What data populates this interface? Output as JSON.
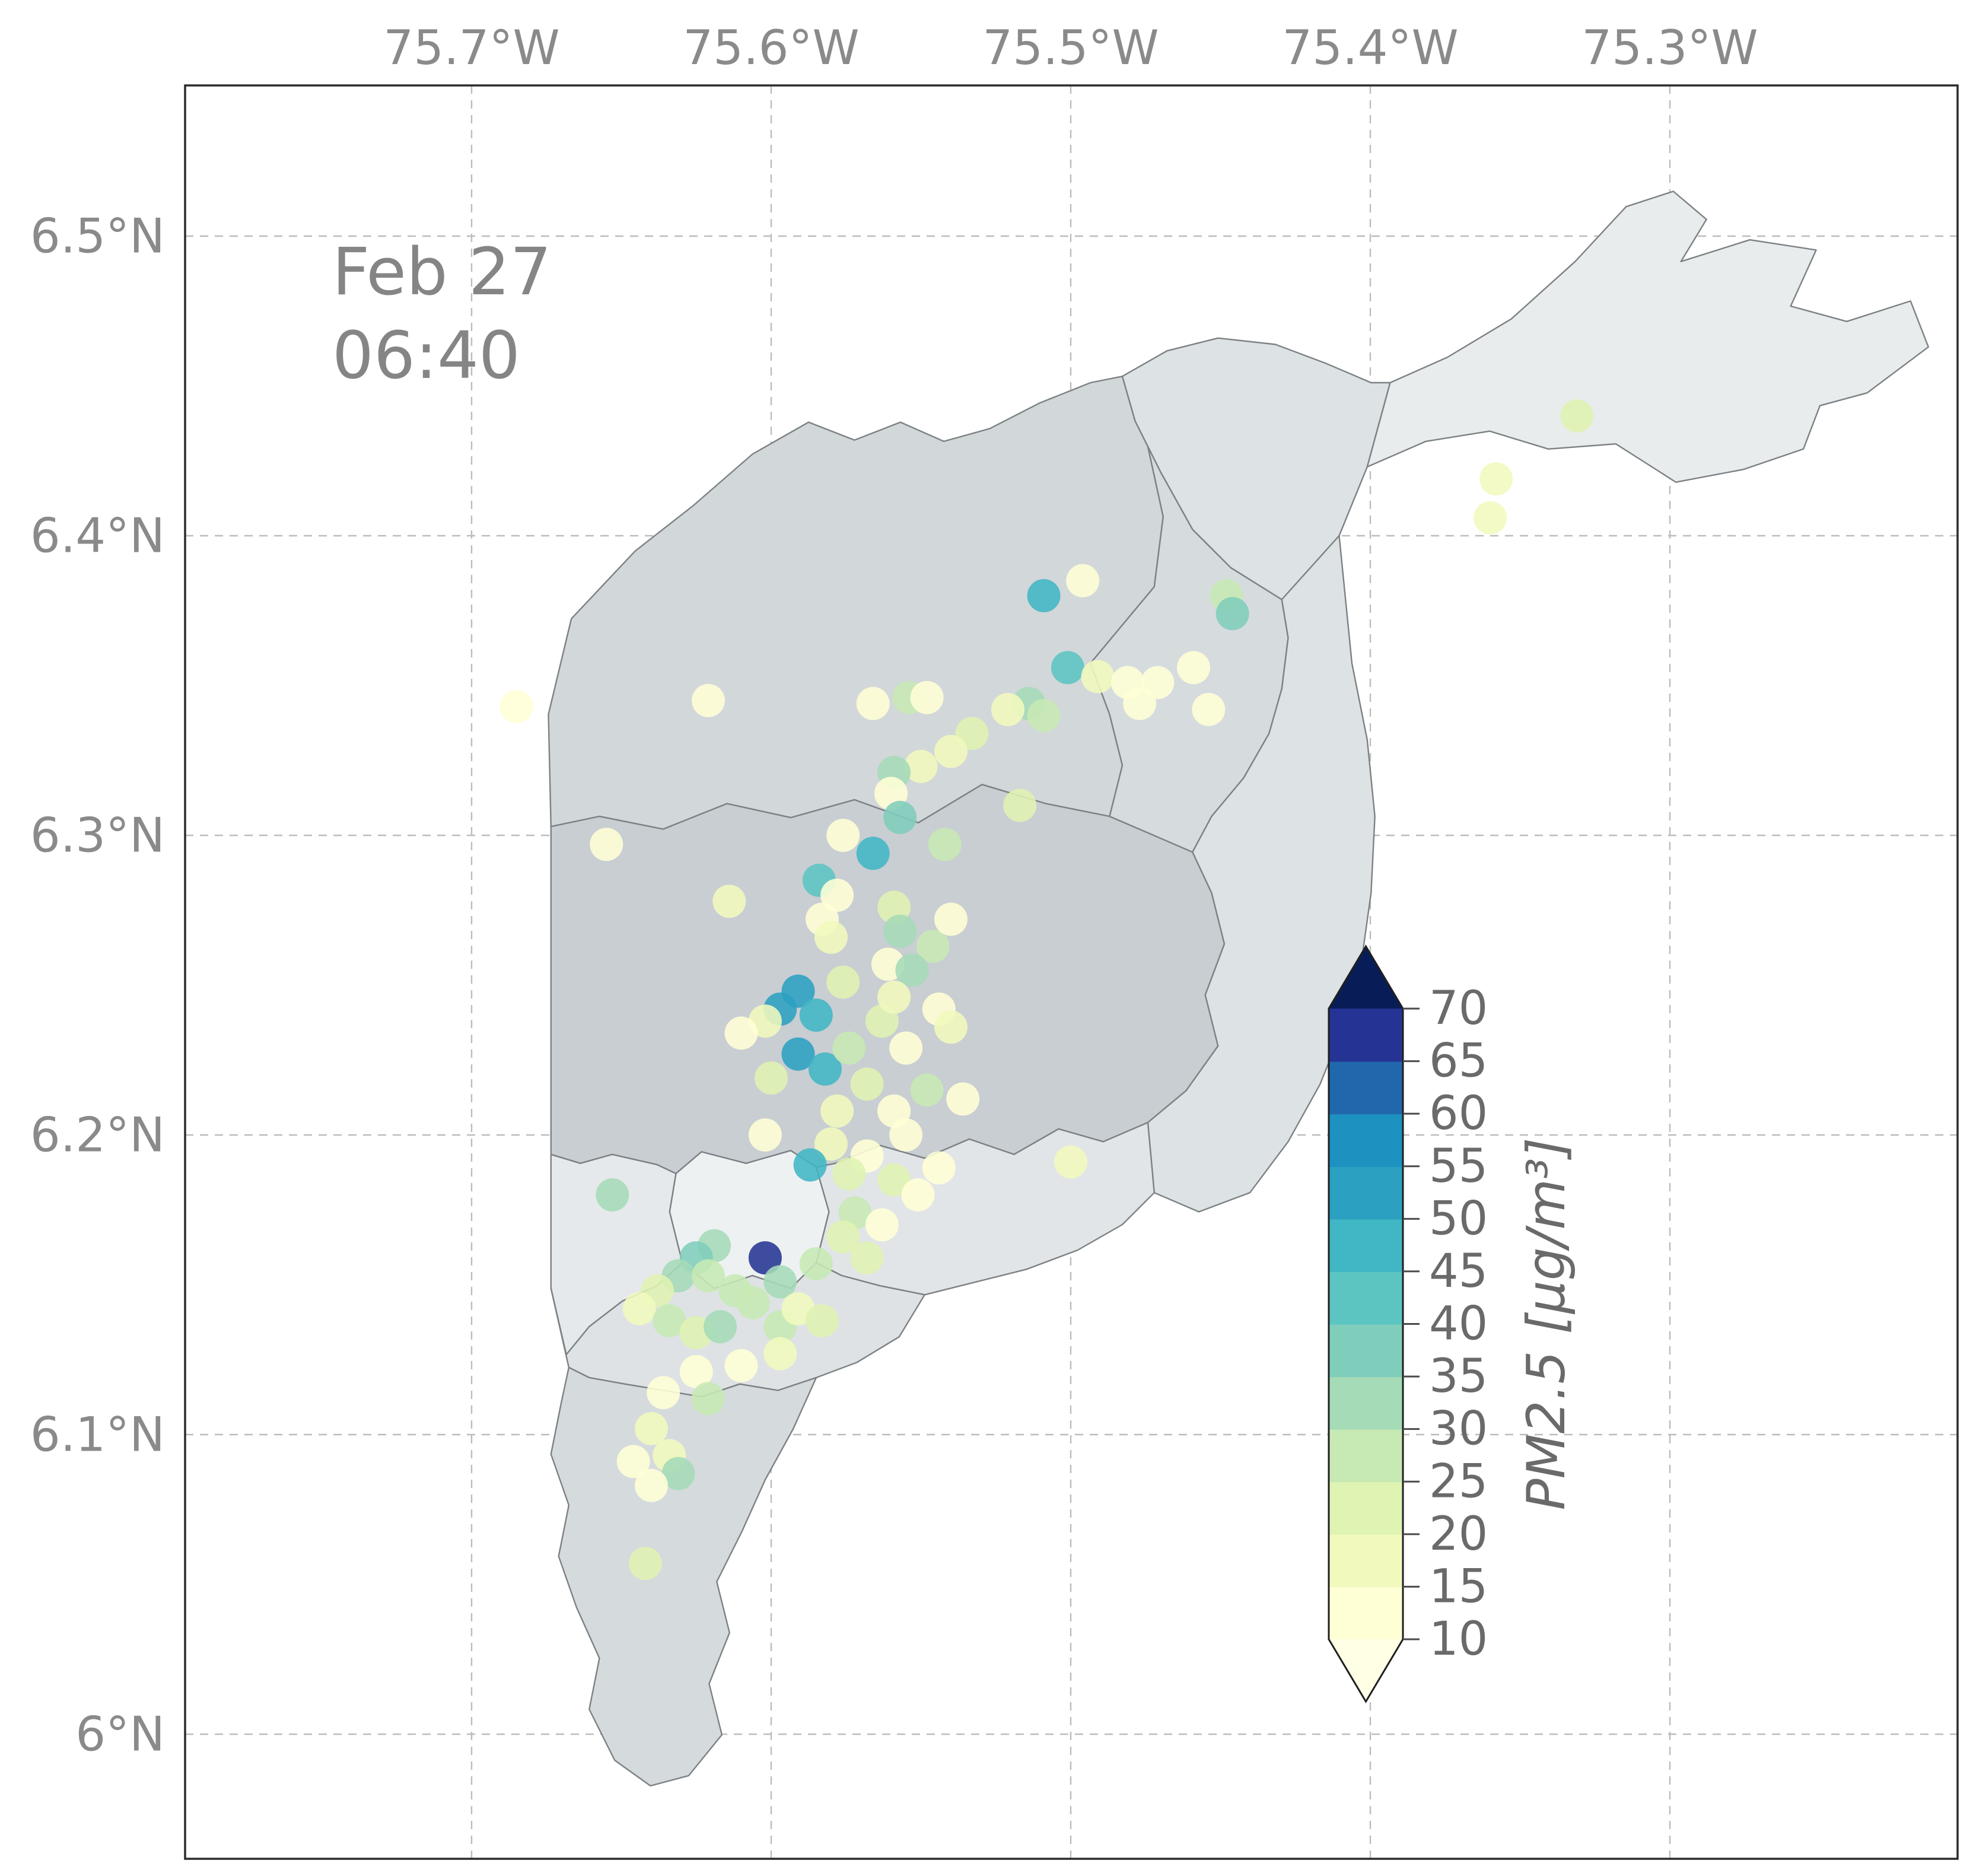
{
  "figure": {
    "annotation": {
      "date": "Feb 27",
      "time": "06:40"
    }
  },
  "axes": {
    "top_tick_labels": [
      "75.7°W",
      "75.6°W",
      "75.5°W",
      "75.4°W",
      "75.3°W"
    ],
    "top_tick_lons": [
      -75.7,
      -75.6,
      -75.5,
      -75.4,
      -75.3
    ],
    "left_tick_labels": [
      "6.5°N",
      "6.4°N",
      "6.3°N",
      "6.2°N",
      "6.1°N",
      "6°N"
    ],
    "left_tick_lats": [
      6.5,
      6.4,
      6.3,
      6.2,
      6.1,
      6.0
    ]
  },
  "colorbar": {
    "label": "PM2.5 [µg/m³]",
    "ticks": [
      70,
      65,
      60,
      55,
      50,
      45,
      40,
      35,
      30,
      25,
      20,
      15,
      10
    ],
    "vmin": 10,
    "vmax": 70,
    "band_step": 5,
    "band_colors": [
      "#ffffd6",
      "#f1f9bd",
      "#dff3b2",
      "#c7e9b4",
      "#a5dbb7",
      "#7fcdbb",
      "#5cc5c1",
      "#41b6c4",
      "#2ba0c1",
      "#1d91c0",
      "#2167ac",
      "#253494"
    ],
    "over_color": "#081d58",
    "under_color": "#ffffe5"
  },
  "chart_data": {
    "type": "scatter",
    "annotation": "Feb 27 06:40",
    "value_label": "PM2.5 [µg/m³]",
    "colormap": "YlGnBu",
    "value_range": [
      10,
      70
    ],
    "lon_ticks": [
      -75.7,
      -75.6,
      -75.5,
      -75.4,
      -75.3
    ],
    "lat_ticks": [
      6.5,
      6.4,
      6.3,
      6.2,
      6.1,
      6.0
    ],
    "grid": true,
    "fields": [
      "lon",
      "lat",
      "pm25"
    ],
    "points": [
      [
        -75.331,
        6.44,
        22
      ],
      [
        -75.358,
        6.419,
        18
      ],
      [
        -75.36,
        6.406,
        15
      ],
      [
        -75.448,
        6.38,
        25
      ],
      [
        -75.446,
        6.374,
        35
      ],
      [
        -75.509,
        6.38,
        45
      ],
      [
        -75.496,
        6.385,
        12
      ],
      [
        -75.501,
        6.356,
        42
      ],
      [
        -75.491,
        6.353,
        15
      ],
      [
        -75.481,
        6.351,
        12
      ],
      [
        -75.471,
        6.351,
        10
      ],
      [
        -75.459,
        6.356,
        10
      ],
      [
        -75.477,
        6.344,
        10
      ],
      [
        -75.454,
        6.342,
        10
      ],
      [
        -75.514,
        6.344,
        30
      ],
      [
        -75.509,
        6.34,
        25
      ],
      [
        -75.521,
        6.342,
        15
      ],
      [
        -75.533,
        6.334,
        20
      ],
      [
        -75.54,
        6.328,
        15
      ],
      [
        -75.55,
        6.323,
        18
      ],
      [
        -75.566,
        6.344,
        13
      ],
      [
        -75.554,
        6.346,
        25
      ],
      [
        -75.548,
        6.346,
        12
      ],
      [
        -75.621,
        6.345,
        13
      ],
      [
        -75.685,
        6.343,
        13
      ],
      [
        -75.559,
        6.321,
        30
      ],
      [
        -75.56,
        6.314,
        12
      ],
      [
        -75.557,
        6.306,
        35
      ],
      [
        -75.517,
        6.31,
        20
      ],
      [
        -75.542,
        6.297,
        25
      ],
      [
        -75.566,
        6.294,
        48
      ],
      [
        -75.576,
        6.3,
        12
      ],
      [
        -75.584,
        6.285,
        40
      ],
      [
        -75.578,
        6.28,
        13
      ],
      [
        -75.655,
        6.297,
        13
      ],
      [
        -75.614,
        6.278,
        15
      ],
      [
        -75.583,
        6.272,
        12
      ],
      [
        -75.58,
        6.266,
        15
      ],
      [
        -75.559,
        6.276,
        22
      ],
      [
        -75.557,
        6.268,
        30
      ],
      [
        -75.546,
        6.263,
        28
      ],
      [
        -75.54,
        6.272,
        12
      ],
      [
        -75.561,
        6.257,
        13
      ],
      [
        -75.553,
        6.255,
        32
      ],
      [
        -75.576,
        6.251,
        20
      ],
      [
        -75.591,
        6.248,
        50
      ],
      [
        -75.597,
        6.242,
        52
      ],
      [
        -75.585,
        6.24,
        45
      ],
      [
        -75.602,
        6.238,
        15
      ],
      [
        -75.61,
        6.234,
        13
      ],
      [
        -75.591,
        6.227,
        50
      ],
      [
        -75.582,
        6.222,
        47
      ],
      [
        -75.6,
        6.219,
        20
      ],
      [
        -75.574,
        6.229,
        25
      ],
      [
        -75.563,
        6.238,
        20
      ],
      [
        -75.559,
        6.246,
        15
      ],
      [
        -75.544,
        6.242,
        12
      ],
      [
        -75.54,
        6.236,
        18
      ],
      [
        -75.555,
        6.229,
        13
      ],
      [
        -75.568,
        6.217,
        22
      ],
      [
        -75.578,
        6.208,
        15
      ],
      [
        -75.559,
        6.208,
        12
      ],
      [
        -75.548,
        6.215,
        28
      ],
      [
        -75.536,
        6.212,
        12
      ],
      [
        -75.555,
        6.2,
        13
      ],
      [
        -75.568,
        6.193,
        12
      ],
      [
        -75.58,
        6.197,
        15
      ],
      [
        -75.602,
        6.2,
        13
      ],
      [
        -75.587,
        6.19,
        45
      ],
      [
        -75.574,
        6.187,
        20
      ],
      [
        -75.559,
        6.185,
        22
      ],
      [
        -75.551,
        6.18,
        12
      ],
      [
        -75.544,
        6.189,
        13
      ],
      [
        -75.5,
        6.191,
        15
      ],
      [
        -75.653,
        6.18,
        30
      ],
      [
        -75.572,
        6.174,
        25
      ],
      [
        -75.563,
        6.17,
        13
      ],
      [
        -75.576,
        6.166,
        22
      ],
      [
        -75.568,
        6.159,
        20
      ],
      [
        -75.585,
        6.157,
        28
      ],
      [
        -75.602,
        6.159,
        65
      ],
      [
        -75.619,
        6.163,
        30
      ],
      [
        -75.625,
        6.159,
        38
      ],
      [
        -75.631,
        6.153,
        30
      ],
      [
        -75.621,
        6.153,
        25
      ],
      [
        -75.612,
        6.148,
        28
      ],
      [
        -75.606,
        6.144,
        25
      ],
      [
        -75.597,
        6.151,
        30
      ],
      [
        -75.638,
        6.148,
        20
      ],
      [
        -75.644,
        6.142,
        15
      ],
      [
        -75.634,
        6.138,
        28
      ],
      [
        -75.625,
        6.134,
        22
      ],
      [
        -75.617,
        6.136,
        30
      ],
      [
        -75.597,
        6.136,
        25
      ],
      [
        -75.591,
        6.142,
        15
      ],
      [
        -75.583,
        6.138,
        22
      ],
      [
        -75.597,
        6.127,
        15
      ],
      [
        -75.61,
        6.123,
        13
      ],
      [
        -75.625,
        6.121,
        12
      ],
      [
        -75.621,
        6.112,
        28
      ],
      [
        -75.636,
        6.114,
        13
      ],
      [
        -75.64,
        6.102,
        15
      ],
      [
        -75.646,
        6.091,
        13
      ],
      [
        -75.634,
        6.093,
        15
      ],
      [
        -75.631,
        6.087,
        32
      ],
      [
        -75.64,
        6.083,
        12
      ],
      [
        -75.642,
        6.057,
        20
      ]
    ]
  }
}
